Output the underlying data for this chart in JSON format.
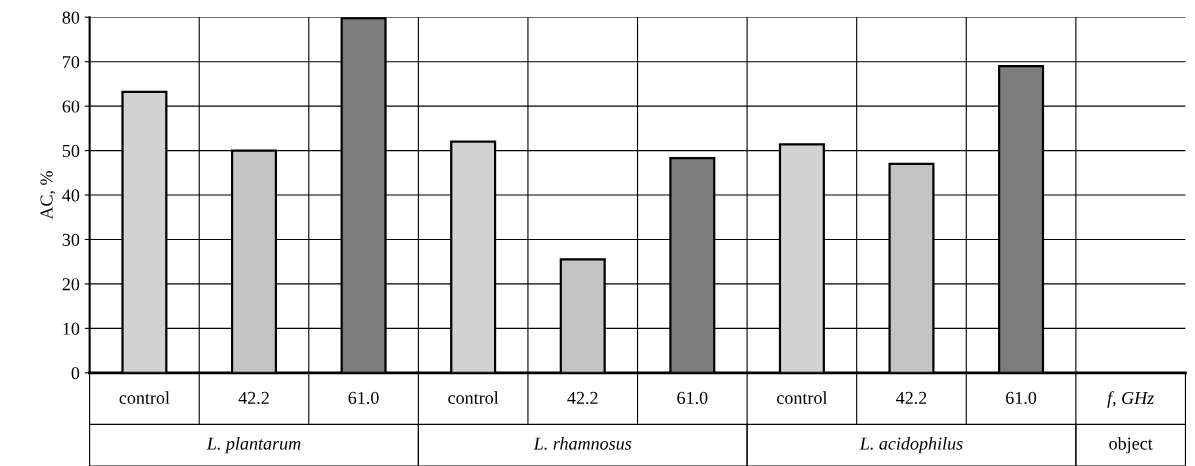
{
  "chart_data": {
    "type": "bar",
    "ylabel": "AC, %",
    "categories": [
      "control",
      "42.2",
      "61.0",
      "control",
      "42.2",
      "61.0",
      "control",
      "42.2",
      "61.0",
      "f, GHz"
    ],
    "values": [
      63.2,
      50,
      79.8,
      52,
      25.5,
      48.3,
      51.4,
      47,
      69,
      null
    ],
    "colors": [
      "#d2d2d2",
      "#c4c4c4",
      "#7c7c7c",
      "#d2d2d2",
      "#c4c4c4",
      "#7c7c7c",
      "#d2d2d2",
      "#c4c4c4",
      "#7c7c7c",
      "#ffffff"
    ],
    "annotations": [
      "L. plantarum",
      "L. rhamnosus",
      "L. acidophilus",
      "object"
    ],
    "ylim": [
      0,
      80
    ],
    "yticks": [
      0,
      10,
      20,
      30,
      40,
      50,
      60,
      70,
      80
    ],
    "grid": true
  }
}
